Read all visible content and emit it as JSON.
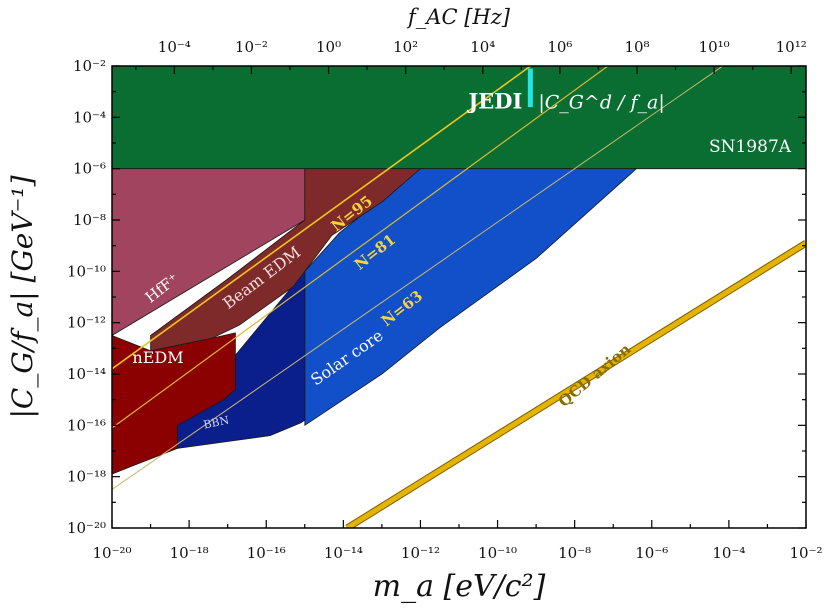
{
  "chart_data": {
    "type": "area",
    "xscale": "log",
    "yscale": "log",
    "xlim": [
      1e-20,
      0.01
    ],
    "ylim": [
      1e-20,
      0.01
    ],
    "xlabel": "m_a [eV/c²]",
    "ylabel": "|C_G/f_a| [GeV⁻¹]",
    "top_axis": {
      "label": "f_AC [Hz]",
      "ticks": [
        {
          "exp": -4,
          "text": "10⁻⁴"
        },
        {
          "exp": -2,
          "text": "10⁻²"
        },
        {
          "exp": 0,
          "text": "10⁰"
        },
        {
          "exp": 2,
          "text": "10²"
        },
        {
          "exp": 4,
          "text": "10⁴"
        },
        {
          "exp": 6,
          "text": "10⁶"
        },
        {
          "exp": 8,
          "text": "10⁸"
        },
        {
          "exp": 10,
          "text": "10¹⁰"
        },
        {
          "exp": 12,
          "text": "10¹²"
        }
      ]
    },
    "x_ticks": [
      {
        "exp": -20,
        "text": "10⁻²⁰"
      },
      {
        "exp": -18,
        "text": "10⁻¹⁸"
      },
      {
        "exp": -16,
        "text": "10⁻¹⁶"
      },
      {
        "exp": -14,
        "text": "10⁻¹⁴"
      },
      {
        "exp": -12,
        "text": "10⁻¹²"
      },
      {
        "exp": -10,
        "text": "10⁻¹⁰"
      },
      {
        "exp": -8,
        "text": "10⁻⁸"
      },
      {
        "exp": -6,
        "text": "10⁻⁶"
      },
      {
        "exp": -4,
        "text": "10⁻⁴"
      },
      {
        "exp": -2,
        "text": "10⁻²"
      }
    ],
    "y_ticks": [
      {
        "exp": -2,
        "text": "10⁻²"
      },
      {
        "exp": -4,
        "text": "10⁻⁴"
      },
      {
        "exp": -6,
        "text": "10⁻⁶"
      },
      {
        "exp": -8,
        "text": "10⁻⁸"
      },
      {
        "exp": -10,
        "text": "10⁻¹⁰"
      },
      {
        "exp": -12,
        "text": "10⁻¹²"
      },
      {
        "exp": -14,
        "text": "10⁻¹⁴"
      },
      {
        "exp": -16,
        "text": "10⁻¹⁶"
      },
      {
        "exp": -18,
        "text": "10⁻¹⁸"
      },
      {
        "exp": -20,
        "text": "10⁻²⁰"
      }
    ],
    "regions": [
      {
        "name": "sn1987a",
        "label": "SN1987A",
        "color": "#0a6e33",
        "label_color": "#ffffff",
        "points": [
          [
            -20,
            -2
          ],
          [
            -2,
            -2
          ],
          [
            -2,
            -6
          ],
          [
            -20,
            -6
          ]
        ]
      },
      {
        "name": "solar-core",
        "label": "Solar core",
        "color": "#1150c8",
        "label_color": "#ffffff",
        "points": [
          [
            -15,
            -16
          ],
          [
            -13,
            -14
          ],
          [
            -11.5,
            -12.2
          ],
          [
            -9,
            -9.5
          ],
          [
            -6.4,
            -6
          ],
          [
            -12,
            -6
          ],
          [
            -14.1,
            -8.5
          ],
          [
            -15,
            -10
          ]
        ]
      },
      {
        "name": "bbn",
        "label": "BBN",
        "color": "#0a1e8c",
        "label_color": "#cfd8ff",
        "points": [
          [
            -18.3,
            -16.9
          ],
          [
            -15.9,
            -16.4
          ],
          [
            -15.1,
            -15.9
          ],
          [
            -15,
            -15.8
          ],
          [
            -15,
            -10
          ],
          [
            -18.3,
            -16
          ]
        ]
      },
      {
        "name": "hff",
        "label": "HfF⁺",
        "color": "#a0445f",
        "label_color": "#ffffff",
        "points": [
          [
            -20,
            -6
          ],
          [
            -15,
            -6
          ],
          [
            -15,
            -8
          ],
          [
            -20,
            -12.5
          ]
        ]
      },
      {
        "name": "beam-edm",
        "label": "Beam EDM",
        "color": "#7f2a2a",
        "label_color": "#f2dede",
        "points": [
          [
            -15,
            -6
          ],
          [
            -12,
            -6
          ],
          [
            -13,
            -7.3
          ],
          [
            -14.3,
            -8.6
          ],
          [
            -15.3,
            -10.6
          ],
          [
            -16.7,
            -12.1
          ],
          [
            -17.4,
            -12.6
          ],
          [
            -19,
            -13.1
          ],
          [
            -19,
            -12.5
          ],
          [
            -17,
            -10.3
          ],
          [
            -15,
            -8
          ]
        ]
      },
      {
        "name": "nedm",
        "label": "nEDM",
        "color": "#8b0000",
        "label_color": "#ffffff",
        "points": [
          [
            -20,
            -12.5
          ],
          [
            -19,
            -13.1
          ],
          [
            -17.4,
            -12.6
          ],
          [
            -16.8,
            -12.4
          ],
          [
            -16.8,
            -14.6
          ],
          [
            -17.1,
            -15.0
          ],
          [
            -18.3,
            -16.0
          ],
          [
            -18.3,
            -16.9
          ],
          [
            -19.5,
            -17.6
          ],
          [
            -20,
            -17.9
          ]
        ]
      }
    ],
    "lines": [
      {
        "name": "n95",
        "label": "N=95",
        "color": "#f0c419",
        "width": 1.6,
        "points": [
          [
            -20,
            -13.8
          ],
          [
            -8.5,
            -1.3
          ]
        ],
        "label_at": [
          -13.7,
          -7.9
        ],
        "label_color": "#f5d442"
      },
      {
        "name": "n81",
        "label": "N=81",
        "color": "#d9b830",
        "width": 1.2,
        "points": [
          [
            -20,
            -16.1
          ],
          [
            -6.5,
            -1.3
          ]
        ],
        "label_at": [
          -13.1,
          -9.4
        ],
        "label_color": "#f5d442"
      },
      {
        "name": "n63",
        "label": "N=63",
        "color": "#c9b86a",
        "width": 1.0,
        "points": [
          [
            -20,
            -18.5
          ],
          [
            -3.2,
            -1.0
          ]
        ],
        "label_at": [
          -12.4,
          -11.6
        ],
        "label_color": "#f5d442"
      },
      {
        "name": "qcd-axion",
        "label": "QCD axion",
        "color": "#e6b400",
        "width": 5,
        "outline": "#7a5f00",
        "points": [
          [
            -13.9,
            -20
          ],
          [
            -2,
            -8.9
          ]
        ],
        "label_at": [
          -7.4,
          -14.2
        ],
        "label_color": "#8a6d00"
      }
    ],
    "jedi": {
      "label": "JEDI",
      "formula": "|C_G^d / f_a|",
      "color": "#22e6e6",
      "x": -9.15,
      "y_range": [
        -2.1,
        -3.6
      ]
    }
  }
}
